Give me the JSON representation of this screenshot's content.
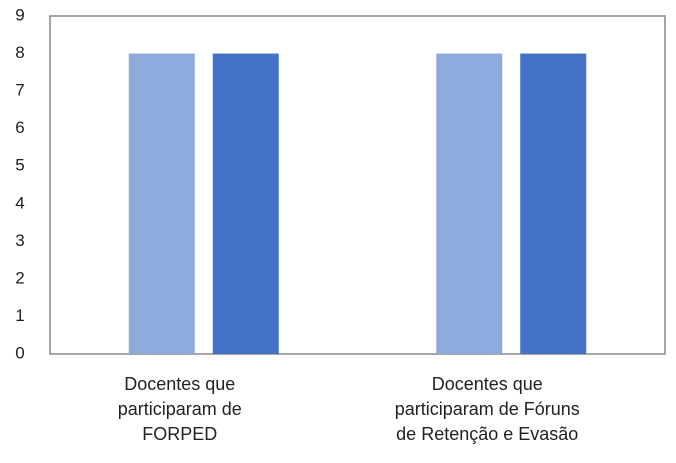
{
  "chart_data": {
    "type": "bar",
    "categories": [
      "Docentes que\nparticiparam de\nFORPED",
      "Docentes que\nparticiparam de Fóruns\nde Retenção e Evasão"
    ],
    "series": [
      {
        "color": "#8faadc",
        "values": [
          8,
          8
        ]
      },
      {
        "color": "#4472c4",
        "values": [
          8,
          8
        ]
      }
    ],
    "ylim": [
      0,
      9
    ],
    "yticks": [
      0,
      1,
      2,
      3,
      4,
      5,
      6,
      7,
      8,
      9
    ],
    "grid": false
  }
}
